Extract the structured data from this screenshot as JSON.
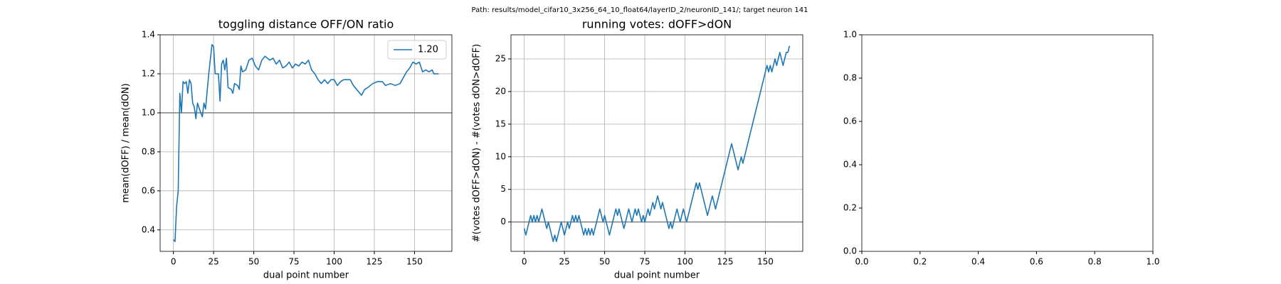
{
  "title": "Path: results/model_cifar10_3x256_64_10_float64/layerID_2/neuronID_141/; target neuron 141",
  "chart_data": [
    {
      "type": "line",
      "title": "toggling distance OFF/ON ratio",
      "xlabel": "dual point number",
      "ylabel": "mean(dOFF) / mean(dON)",
      "x": [
        0,
        1,
        2,
        3,
        4,
        5,
        6,
        7,
        8,
        9,
        10,
        11,
        12,
        13,
        14,
        15,
        17,
        18,
        19,
        20,
        22,
        24,
        25,
        26,
        28,
        29,
        30,
        31,
        32,
        33,
        34,
        36,
        37,
        38,
        40,
        41,
        42,
        43,
        45,
        47,
        49,
        51,
        53,
        55,
        57,
        60,
        62,
        64,
        66,
        68,
        70,
        72,
        74,
        76,
        78,
        80,
        82,
        84,
        86,
        88,
        90,
        92,
        94,
        96,
        98,
        100,
        102,
        104,
        106,
        110,
        112,
        115,
        117,
        119,
        121,
        124,
        127,
        130,
        132,
        135,
        138,
        141,
        143,
        145,
        147,
        149,
        151,
        153,
        155,
        157,
        159,
        161,
        162,
        165
      ],
      "series": [
        {
          "name": "1.20",
          "color": "#1f77b4",
          "values": [
            0.35,
            0.34,
            0.52,
            0.6,
            1.1,
            1.0,
            1.16,
            1.15,
            1.16,
            1.1,
            1.17,
            1.15,
            1.05,
            1.03,
            0.97,
            1.05,
            1.0,
            0.98,
            1.05,
            1.02,
            1.2,
            1.35,
            1.34,
            1.2,
            1.2,
            1.06,
            1.25,
            1.27,
            1.22,
            1.28,
            1.13,
            1.12,
            1.1,
            1.15,
            1.14,
            1.12,
            1.24,
            1.21,
            1.22,
            1.27,
            1.28,
            1.24,
            1.22,
            1.27,
            1.29,
            1.27,
            1.28,
            1.25,
            1.27,
            1.23,
            1.24,
            1.26,
            1.23,
            1.25,
            1.24,
            1.26,
            1.25,
            1.27,
            1.22,
            1.2,
            1.17,
            1.15,
            1.17,
            1.15,
            1.17,
            1.17,
            1.14,
            1.16,
            1.17,
            1.17,
            1.14,
            1.11,
            1.09,
            1.12,
            1.13,
            1.15,
            1.16,
            1.16,
            1.14,
            1.15,
            1.14,
            1.15,
            1.18,
            1.21,
            1.23,
            1.26,
            1.25,
            1.26,
            1.21,
            1.22,
            1.21,
            1.22,
            1.2,
            1.2
          ]
        }
      ],
      "hline": 1.0,
      "hline_color": "#808080",
      "xlim": [
        -8.25,
        173.25
      ],
      "xticks": [
        0,
        25,
        50,
        75,
        100,
        125,
        150
      ],
      "ylim": [
        0.29,
        1.4
      ],
      "yticks": [
        0.4,
        0.6,
        0.8,
        {
          "value": 1.0,
          "label": "1.0"
        },
        1.2,
        1.4
      ],
      "grid": true,
      "legend": "upper right"
    },
    {
      "type": "line",
      "title": "running votes: dOFF>dON",
      "xlabel": "dual point number",
      "ylabel": "#(votes dOFF>dON) - #(votes dON>dOFF)",
      "color": "#1f77b4",
      "x": [
        0,
        1,
        2,
        3,
        4,
        5,
        6,
        7,
        8,
        9,
        10,
        11,
        12,
        13,
        14,
        15,
        16,
        17,
        18,
        19,
        20,
        21,
        22,
        23,
        24,
        25,
        26,
        27,
        28,
        29,
        30,
        31,
        32,
        33,
        34,
        35,
        36,
        37,
        38,
        39,
        40,
        41,
        42,
        43,
        44,
        45,
        46,
        47,
        48,
        49,
        50,
        51,
        52,
        53,
        54,
        55,
        56,
        57,
        58,
        59,
        60,
        61,
        62,
        63,
        64,
        65,
        66,
        67,
        68,
        69,
        70,
        71,
        72,
        73,
        74,
        75,
        76,
        77,
        78,
        79,
        80,
        81,
        82,
        83,
        84,
        85,
        86,
        87,
        88,
        89,
        90,
        91,
        92,
        93,
        94,
        95,
        96,
        97,
        98,
        99,
        100,
        101,
        102,
        103,
        104,
        105,
        106,
        107,
        108,
        109,
        110,
        111,
        112,
        113,
        114,
        115,
        116,
        117,
        118,
        119,
        120,
        121,
        122,
        123,
        124,
        125,
        126,
        127,
        128,
        129,
        130,
        131,
        132,
        133,
        134,
        135,
        136,
        137,
        138,
        139,
        140,
        141,
        142,
        143,
        144,
        145,
        146,
        147,
        148,
        149,
        150,
        151,
        152,
        153,
        154,
        155,
        156,
        157,
        158,
        159,
        160,
        161,
        162,
        163,
        164,
        165
      ],
      "values": [
        -1,
        -2,
        -1,
        0,
        1,
        0,
        1,
        0,
        1,
        0,
        1,
        2,
        1,
        0,
        -1,
        0,
        -1,
        -2,
        -3,
        -2,
        -3,
        -2,
        -1,
        0,
        -1,
        -2,
        -1,
        0,
        -1,
        0,
        1,
        0,
        1,
        0,
        1,
        0,
        -1,
        -2,
        -1,
        -2,
        -1,
        -2,
        -1,
        -2,
        -1,
        0,
        1,
        2,
        1,
        0,
        1,
        0,
        -1,
        -2,
        -1,
        0,
        1,
        2,
        1,
        2,
        1,
        0,
        -1,
        0,
        1,
        2,
        1,
        0,
        1,
        2,
        1,
        2,
        1,
        0,
        1,
        0,
        1,
        2,
        1,
        2,
        3,
        2,
        3,
        4,
        3,
        2,
        3,
        2,
        1,
        0,
        -1,
        0,
        -1,
        0,
        1,
        2,
        1,
        0,
        1,
        2,
        1,
        0,
        1,
        2,
        3,
        4,
        5,
        6,
        5,
        6,
        5,
        4,
        3,
        2,
        1,
        2,
        3,
        4,
        3,
        2,
        3,
        4,
        5,
        6,
        7,
        8,
        9,
        10,
        11,
        12,
        11,
        10,
        9,
        8,
        9,
        10,
        9,
        10,
        11,
        12,
        13,
        14,
        15,
        16,
        17,
        18,
        19,
        20,
        21,
        22,
        23,
        24,
        23,
        24,
        23,
        24,
        25,
        24,
        25,
        26,
        25,
        24,
        25,
        26,
        26,
        27
      ],
      "hline": 0,
      "hline_color": "#808080",
      "xlim": [
        -8.25,
        173.25
      ],
      "xticks": [
        0,
        25,
        50,
        75,
        100,
        125,
        150
      ],
      "ylim": [
        -4.5,
        28.7
      ],
      "yticks": [
        0,
        5,
        10,
        15,
        20,
        25
      ],
      "grid": true
    },
    {
      "type": "empty",
      "xlim": [
        0,
        1
      ],
      "xticks": [
        {
          "value": 0,
          "label": "0.0"
        },
        {
          "value": 0.2,
          "label": "0.2"
        },
        {
          "value": 0.4,
          "label": "0.4"
        },
        {
          "value": 0.6,
          "label": "0.6"
        },
        {
          "value": 0.8,
          "label": "0.8"
        },
        {
          "value": 1,
          "label": "1.0"
        }
      ],
      "ylim": [
        0,
        1
      ],
      "yticks": [
        {
          "value": 0,
          "label": "0.0"
        },
        {
          "value": 0.2,
          "label": "0.2"
        },
        {
          "value": 0.4,
          "label": "0.4"
        },
        {
          "value": 0.6,
          "label": "0.6"
        },
        {
          "value": 0.8,
          "label": "0.8"
        },
        {
          "value": 1,
          "label": "1.0"
        }
      ],
      "grid": false
    }
  ]
}
